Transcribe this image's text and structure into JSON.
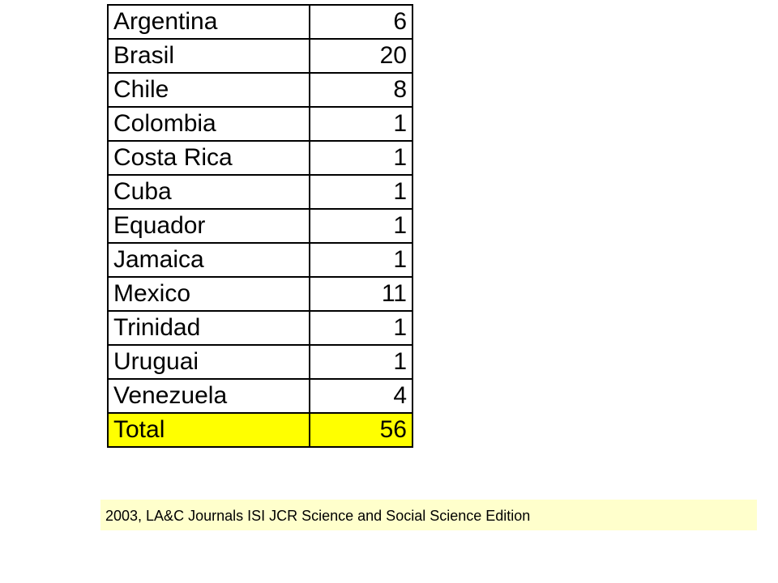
{
  "table": {
    "rows": [
      [
        "Argentina",
        6
      ],
      [
        "Brasil",
        20
      ],
      [
        "Chile",
        8
      ],
      [
        "Colombia",
        1
      ],
      [
        "Costa Rica",
        1
      ],
      [
        "Cuba",
        1
      ],
      [
        "Equador",
        1
      ],
      [
        "Jamaica",
        1
      ],
      [
        "Mexico",
        11
      ],
      [
        "Trinidad",
        1
      ],
      [
        "Uruguai",
        1
      ],
      [
        "Venezuela",
        4
      ]
    ],
    "total": [
      "Total",
      56
    ]
  },
  "caption": "2003, LA&C Journals ISI JCR Science and Social Science Edition"
}
